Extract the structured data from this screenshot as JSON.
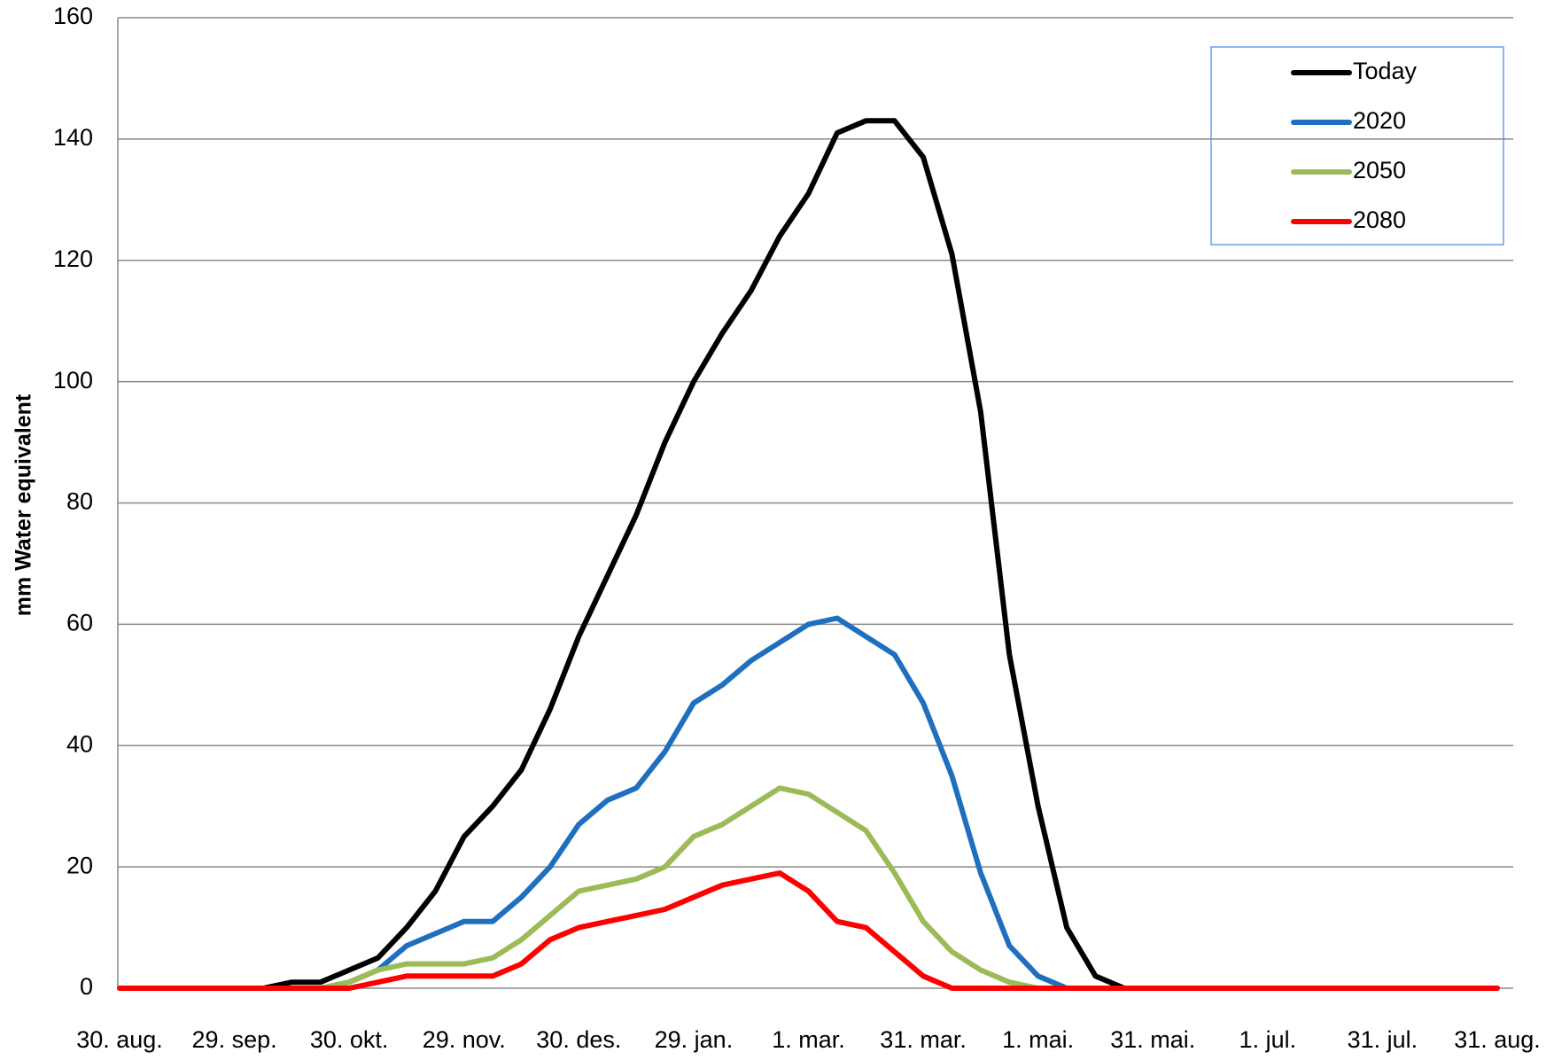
{
  "chart_data": {
    "type": "line",
    "y_label": "mm Water equivalent",
    "categories": [
      "30. aug.",
      null,
      null,
      null,
      "29. sep.",
      null,
      null,
      null,
      "30. okt.",
      null,
      null,
      null,
      "29. nov.",
      null,
      null,
      null,
      "30. des.",
      null,
      null,
      null,
      "29. jan.",
      null,
      null,
      null,
      "1. mar.",
      null,
      null,
      null,
      "31. mar.",
      null,
      null,
      null,
      "1. mai.",
      null,
      null,
      null,
      "31. mai.",
      null,
      null,
      null,
      "1. jul.",
      null,
      null,
      null,
      "31. jul.",
      null,
      null,
      null,
      "31. aug."
    ],
    "series": [
      {
        "name": "Today",
        "color": "#000000",
        "values": [
          0,
          0,
          0,
          0,
          0,
          0,
          1,
          1,
          3,
          5,
          10,
          16,
          25,
          30,
          36,
          46,
          58,
          68,
          78,
          90,
          100,
          108,
          115,
          124,
          131,
          141,
          143,
          143,
          137,
          121,
          95,
          55,
          30,
          10,
          2,
          0,
          0,
          0,
          0,
          0,
          0,
          0,
          0,
          0,
          0,
          0,
          0,
          0,
          0
        ]
      },
      {
        "name": "2020",
        "color": "#1f6fbf",
        "values": [
          0,
          0,
          0,
          0,
          0,
          0,
          0,
          0,
          1,
          3,
          7,
          9,
          11,
          11,
          15,
          20,
          27,
          31,
          33,
          39,
          47,
          50,
          54,
          57,
          60,
          61,
          58,
          55,
          47,
          35,
          19,
          7,
          2,
          0,
          0,
          0,
          0,
          0,
          0,
          0,
          0,
          0,
          0,
          0,
          0,
          0,
          0,
          0,
          0
        ]
      },
      {
        "name": "2050",
        "color": "#9bbb59",
        "values": [
          0,
          0,
          0,
          0,
          0,
          0,
          0,
          0,
          1,
          3,
          4,
          4,
          4,
          5,
          8,
          12,
          16,
          17,
          18,
          20,
          25,
          27,
          30,
          33,
          32,
          29,
          26,
          19,
          11,
          6,
          3,
          1,
          0,
          0,
          0,
          0,
          0,
          0,
          0,
          0,
          0,
          0,
          0,
          0,
          0,
          0,
          0,
          0,
          0
        ]
      },
      {
        "name": "2080",
        "color": "#ff0000",
        "values": [
          0,
          0,
          0,
          0,
          0,
          0,
          0,
          0,
          0,
          1,
          2,
          2,
          2,
          2,
          4,
          8,
          10,
          11,
          12,
          13,
          15,
          17,
          18,
          19,
          16,
          11,
          10,
          6,
          2,
          0,
          0,
          0,
          0,
          0,
          0,
          0,
          0,
          0,
          0,
          0,
          0,
          0,
          0,
          0,
          0,
          0,
          0,
          0,
          0
        ]
      }
    ],
    "ylim": [
      0,
      160
    ],
    "yticks": [
      0,
      20,
      40,
      60,
      80,
      100,
      120,
      140,
      160
    ],
    "grid": true,
    "legend": "upper right"
  }
}
